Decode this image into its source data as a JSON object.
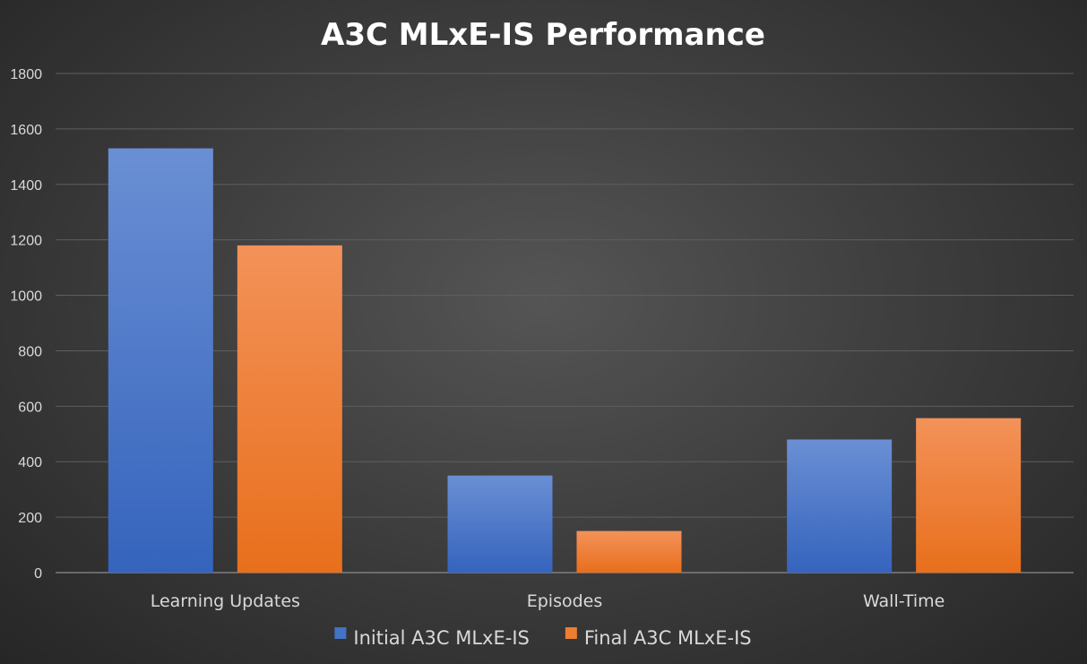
{
  "chart_data": {
    "type": "bar",
    "title": "A3C MLxE-IS Performance",
    "xlabel": "",
    "ylabel": "",
    "categories": [
      "Learning Updates",
      "Episodes",
      "Wall-Time"
    ],
    "series": [
      {
        "name": "Initial A3C MLxE-IS",
        "values": [
          1530,
          350,
          480
        ],
        "color": "#4472c4"
      },
      {
        "name": "Final A3C MLxE-IS",
        "values": [
          1180,
          150,
          557
        ],
        "color": "#ed7d31"
      }
    ],
    "ylim": [
      0,
      1800
    ],
    "yticks": [
      "0",
      "200",
      "400",
      "600",
      "800",
      "1000",
      "1200",
      "1400",
      "1600",
      "1800"
    ],
    "grid": true,
    "legend_position": "bottom"
  }
}
